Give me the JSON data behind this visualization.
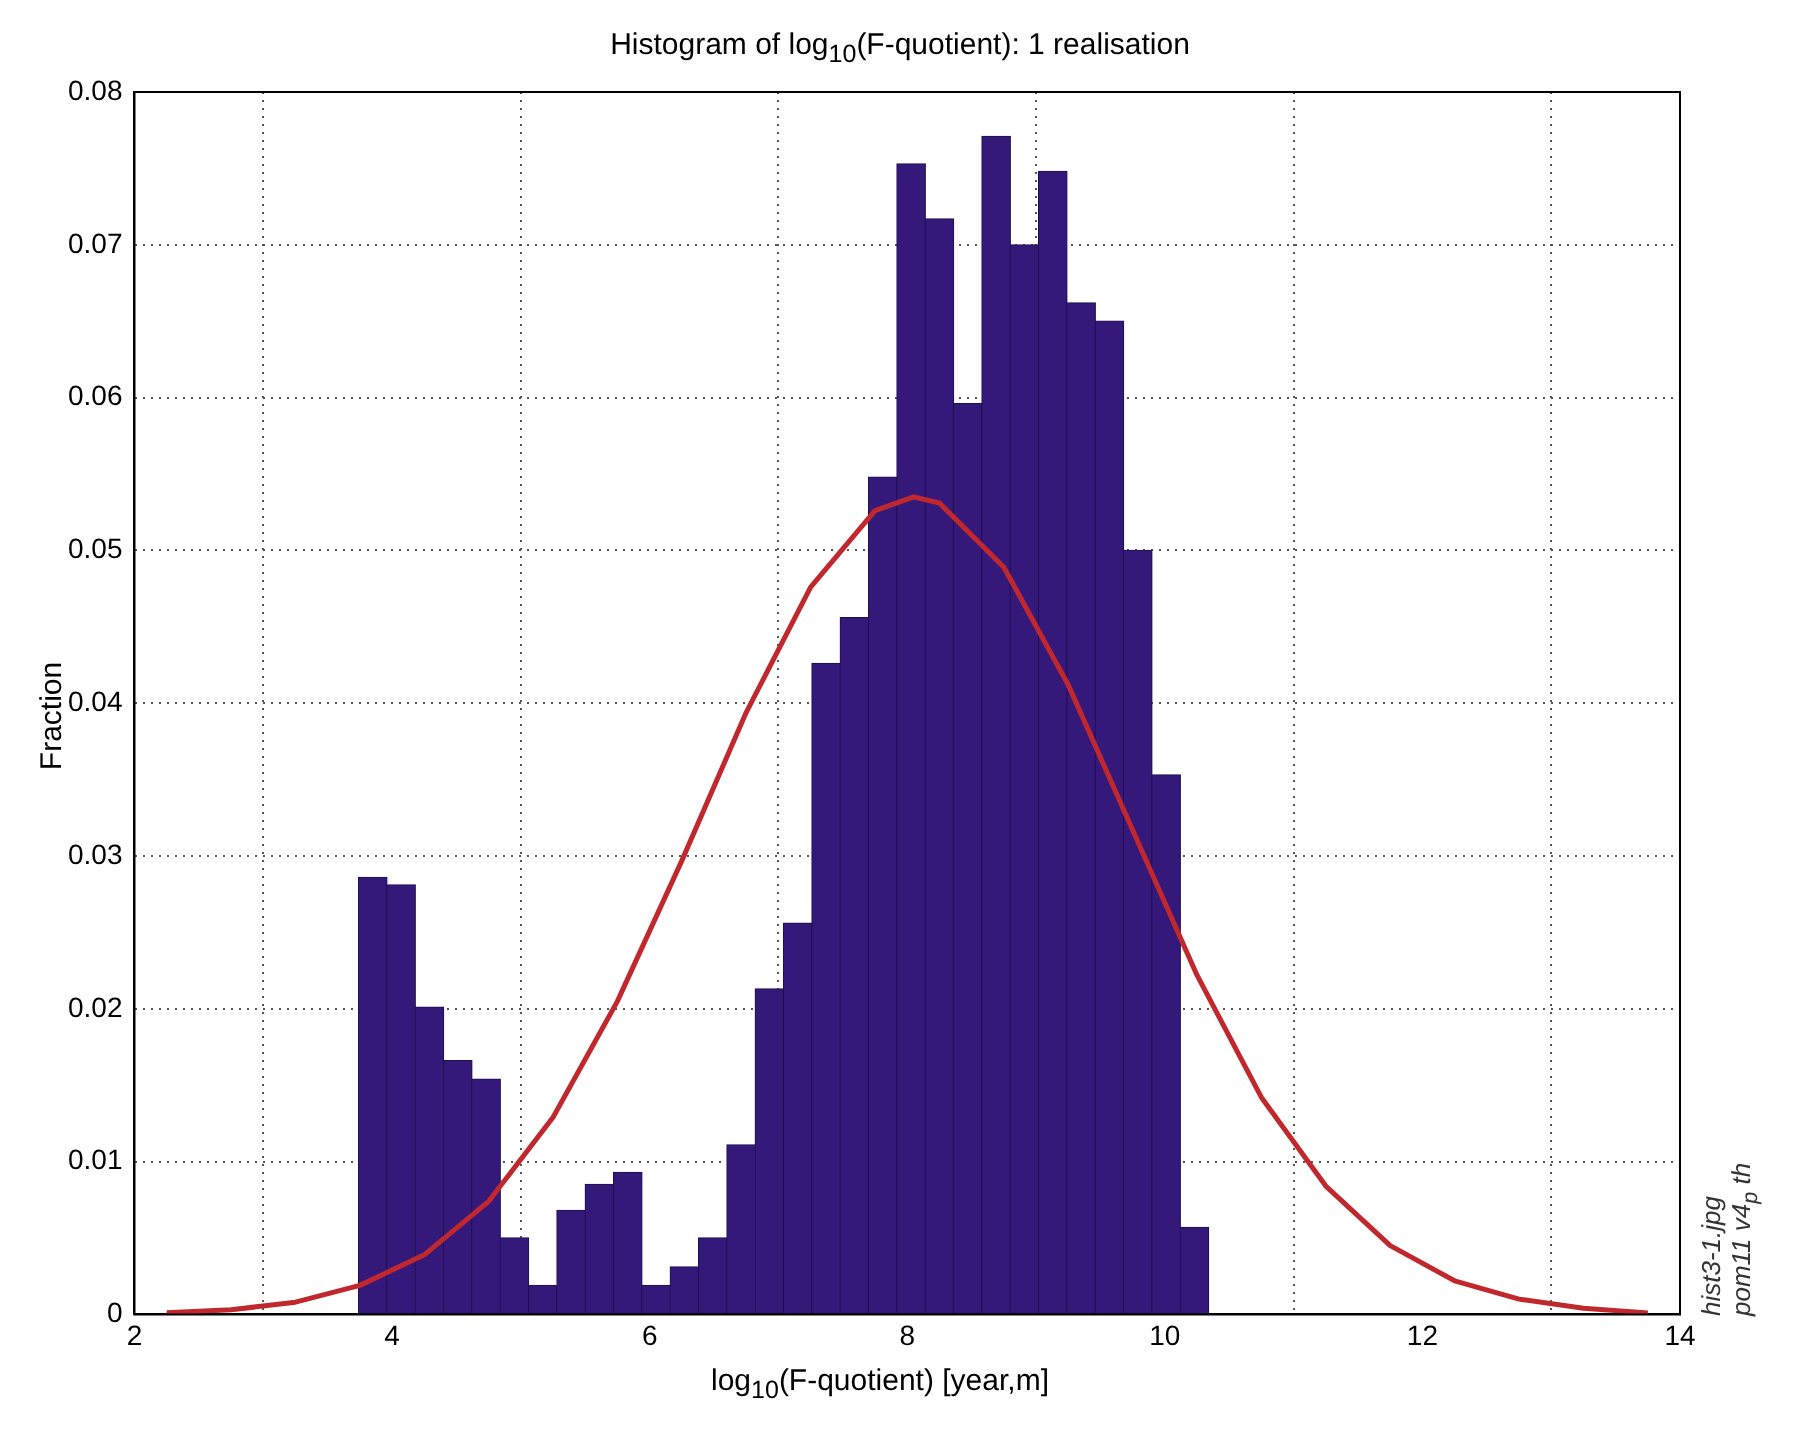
{
  "chart_data": {
    "type": "histogram",
    "title": "Histogram of log$_{10}$(F-quotient):  1 realisation",
    "xlabel": "log$_{10}$(F-quotient)  [year,m]",
    "ylabel": "Fraction",
    "bins": [
      3.74,
      3.96,
      4.18,
      4.4,
      4.62,
      4.84,
      5.06,
      5.28,
      5.5,
      5.72,
      5.94,
      6.16,
      6.38,
      6.6,
      6.82,
      7.04,
      7.26,
      7.48,
      7.7,
      7.92,
      8.14,
      8.36,
      8.58,
      8.8,
      9.02,
      9.24,
      9.46,
      9.68,
      9.9,
      10.12,
      10.34
    ],
    "values": [
      0.0286,
      0.0281,
      0.0201,
      0.0166,
      0.0154,
      0.005,
      0.0019,
      0.0068,
      0.0085,
      0.0093,
      0.0019,
      0.0031,
      0.005,
      0.0111,
      0.0213,
      0.0256,
      0.0426,
      0.0456,
      0.0548,
      0.0753,
      0.0717,
      0.0596,
      0.0771,
      0.07,
      0.0748,
      0.0662,
      0.065,
      0.05,
      0.0353,
      0.0057
    ],
    "color": "#35197a",
    "series": [
      {
        "type": "line",
        "color": "#c0282e",
        "x": [
          2.25,
          2.75,
          3.25,
          3.75,
          4.25,
          4.75,
          5.25,
          5.75,
          6.25,
          6.75,
          7.25,
          7.75,
          8.05,
          8.25,
          8.75,
          9.25,
          9.75,
          10.25,
          10.75,
          11.25,
          11.75,
          12.25,
          12.75,
          13.25,
          13.75
        ],
        "values": [
          0.0001,
          0.0003,
          0.0008,
          0.0019,
          0.0039,
          0.0074,
          0.0129,
          0.0205,
          0.0297,
          0.0394,
          0.0476,
          0.0526,
          0.0535,
          0.0531,
          0.0489,
          0.0412,
          0.0317,
          0.0222,
          0.0142,
          0.0084,
          0.0045,
          0.0022,
          0.001,
          0.0004,
          0.0001
        ]
      }
    ],
    "xlim": [
      2,
      14
    ],
    "xticks": [
      2,
      4,
      6,
      8,
      10,
      12,
      14
    ],
    "ylim": [
      0,
      0.08
    ],
    "yticks": [
      0,
      0.01,
      0.02,
      0.03,
      0.04,
      0.05,
      0.06,
      0.07,
      0.08
    ],
    "grid": true,
    "legend": false,
    "marker": "none",
    "line_style": "solid",
    "annotations": [
      "hist3-1.jpg",
      "pom11 v4$_{p}$ th"
    ]
  }
}
